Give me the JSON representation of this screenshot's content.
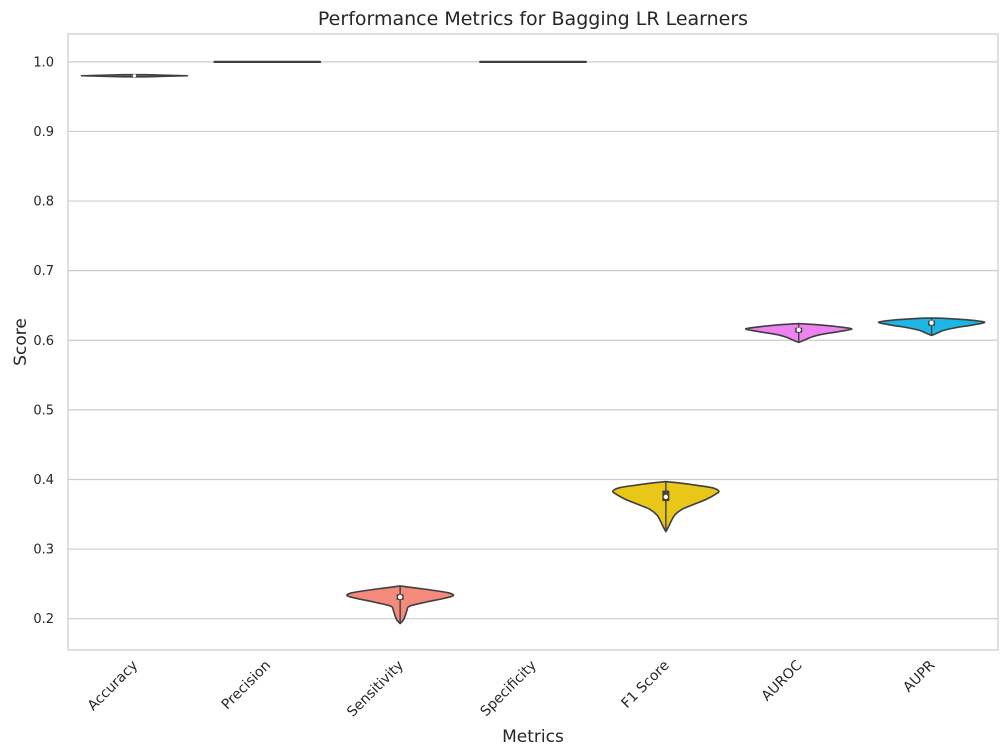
{
  "chart_data": {
    "type": "violin",
    "title": "Performance Metrics for Bagging LR Learners",
    "xlabel": "Metrics",
    "ylabel": "Score",
    "ylim": [
      0.155,
      1.04
    ],
    "yticks": [
      0.2,
      0.3,
      0.4,
      0.5,
      0.6,
      0.7,
      0.8,
      0.9,
      1.0
    ],
    "ytick_labels": [
      "0.2",
      "0.3",
      "0.4",
      "0.5",
      "0.6",
      "0.7",
      "0.8",
      "0.9",
      "1.0"
    ],
    "grid": true,
    "categories": [
      "Accuracy",
      "Precision",
      "Sensitivity",
      "Specificity",
      "F1 Score",
      "AUROC",
      "AUPR"
    ],
    "series": [
      {
        "category": "Accuracy",
        "color": "#7f7f7f",
        "min": 0.9785,
        "max": 0.9815,
        "q1": 0.979,
        "median": 0.98,
        "q3": 0.981,
        "profile": [
          [
            0.9785,
            0.2
          ],
          [
            0.98,
            1.0
          ],
          [
            0.9815,
            0.2
          ]
        ]
      },
      {
        "category": "Precision",
        "color": "#555555",
        "min": 0.9995,
        "max": 1.0005,
        "q1": 1.0,
        "median": 1.0,
        "q3": 1.0,
        "profile": [
          [
            0.9995,
            1.0
          ],
          [
            1.0005,
            1.0
          ]
        ]
      },
      {
        "category": "Sensitivity",
        "color": "#f48a7b",
        "min": 0.193,
        "max": 0.247,
        "q1": 0.227,
        "median": 0.231,
        "q3": 0.235,
        "profile": [
          [
            0.193,
            0.0
          ],
          [
            0.198,
            0.06
          ],
          [
            0.205,
            0.1
          ],
          [
            0.212,
            0.13
          ],
          [
            0.218,
            0.18
          ],
          [
            0.224,
            0.5
          ],
          [
            0.229,
            0.82
          ],
          [
            0.233,
            1.0
          ],
          [
            0.237,
            0.92
          ],
          [
            0.241,
            0.6
          ],
          [
            0.244,
            0.3
          ],
          [
            0.247,
            0.0
          ]
        ]
      },
      {
        "category": "Specificity",
        "color": "#555555",
        "min": 0.9995,
        "max": 1.0005,
        "q1": 1.0,
        "median": 1.0,
        "q3": 1.0,
        "profile": [
          [
            0.9995,
            1.0
          ],
          [
            1.0005,
            1.0
          ]
        ]
      },
      {
        "category": "F1 Score",
        "color": "#e8c718",
        "min": 0.325,
        "max": 0.397,
        "q1": 0.369,
        "median": 0.375,
        "q3": 0.384,
        "profile": [
          [
            0.325,
            0.0
          ],
          [
            0.332,
            0.05
          ],
          [
            0.34,
            0.1
          ],
          [
            0.349,
            0.17
          ],
          [
            0.357,
            0.3
          ],
          [
            0.364,
            0.52
          ],
          [
            0.371,
            0.75
          ],
          [
            0.378,
            0.92
          ],
          [
            0.383,
            1.0
          ],
          [
            0.388,
            0.88
          ],
          [
            0.392,
            0.55
          ],
          [
            0.395,
            0.25
          ],
          [
            0.397,
            0.0
          ]
        ]
      },
      {
        "category": "AUROC",
        "color": "#ee82ee",
        "min": 0.597,
        "max": 0.624,
        "q1": 0.611,
        "median": 0.615,
        "q3": 0.618,
        "profile": [
          [
            0.597,
            0.0
          ],
          [
            0.6,
            0.1
          ],
          [
            0.604,
            0.22
          ],
          [
            0.608,
            0.4
          ],
          [
            0.612,
            0.72
          ],
          [
            0.616,
            1.0
          ],
          [
            0.619,
            0.78
          ],
          [
            0.622,
            0.4
          ],
          [
            0.624,
            0.0
          ]
        ]
      },
      {
        "category": "AUPR",
        "color": "#1eb6e4",
        "min": 0.607,
        "max": 0.632,
        "q1": 0.621,
        "median": 0.625,
        "q3": 0.628,
        "profile": [
          [
            0.607,
            0.0
          ],
          [
            0.61,
            0.1
          ],
          [
            0.614,
            0.22
          ],
          [
            0.618,
            0.45
          ],
          [
            0.622,
            0.78
          ],
          [
            0.626,
            1.0
          ],
          [
            0.629,
            0.72
          ],
          [
            0.631,
            0.35
          ],
          [
            0.632,
            0.0
          ]
        ]
      }
    ]
  }
}
